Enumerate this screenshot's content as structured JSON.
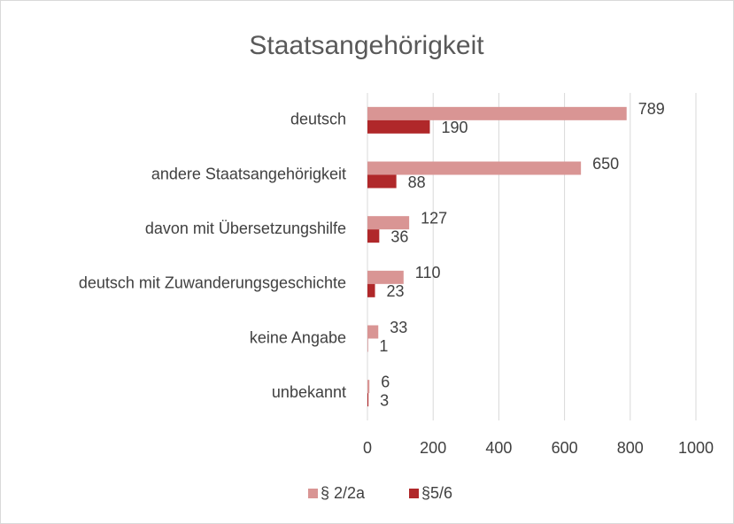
{
  "chart_data": {
    "type": "hbar",
    "title": "Staatsangehörigkeit",
    "categories": [
      "deutsch",
      "andere Staatsangehörigkeit",
      "davon mit Übersetzungshilfe",
      "deutsch mit Zuwanderungsgeschichte",
      "keine Angabe",
      "unbekannt"
    ],
    "series": [
      {
        "name": "§ 2/2a",
        "color": "#d99594",
        "values": [
          789,
          650,
          127,
          110,
          33,
          6
        ]
      },
      {
        "name": "§5/6",
        "color": "#b0282a",
        "values": [
          190,
          88,
          36,
          23,
          1,
          3
        ]
      }
    ],
    "xlim": [
      0,
      1000
    ],
    "xticks": [
      0,
      200,
      400,
      600,
      800,
      1000
    ],
    "grid": true,
    "legend": "bottom"
  }
}
